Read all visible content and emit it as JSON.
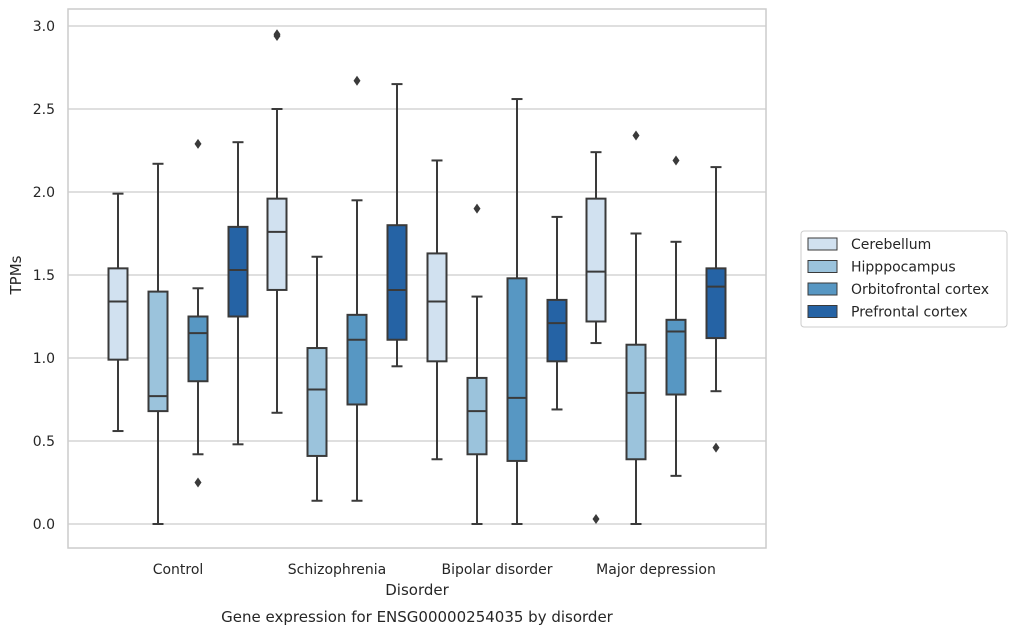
{
  "chart_data": {
    "type": "box",
    "title": "",
    "caption": "Gene expression for ENSG00000254035 by disorder",
    "xlabel": "Disorder",
    "ylabel": "TPMs",
    "ylim": [
      -0.15,
      3.1
    ],
    "yticks": [
      "0.0",
      "0.5",
      "1.0",
      "1.5",
      "2.0",
      "2.5",
      "3.0"
    ],
    "grid": "horizontal",
    "legend_position": "right",
    "categories": [
      "Control",
      "Schizophrenia",
      "Bipolar disorder",
      "Major depression"
    ],
    "series": [
      {
        "name": "Cerebellum",
        "color": "#d1e1f0",
        "boxes": [
          {
            "whisker_low": 0.56,
            "q1": 0.99,
            "median": 1.34,
            "q3": 1.54,
            "whisker_high": 1.99,
            "outliers": []
          },
          {
            "whisker_low": 0.67,
            "q1": 1.41,
            "median": 1.76,
            "q3": 1.96,
            "whisker_high": 2.5,
            "outliers": [
              2.94,
              2.95
            ]
          },
          {
            "whisker_low": 0.39,
            "q1": 0.98,
            "median": 1.34,
            "q3": 1.63,
            "whisker_high": 2.19,
            "outliers": []
          },
          {
            "whisker_low": 1.09,
            "q1": 1.22,
            "median": 1.52,
            "q3": 1.96,
            "whisker_high": 2.24,
            "outliers": [
              0.03
            ]
          }
        ]
      },
      {
        "name": "Hipppocampus",
        "color": "#9bc3dc",
        "boxes": [
          {
            "whisker_low": 0.0,
            "q1": 0.68,
            "median": 0.77,
            "q3": 1.4,
            "whisker_high": 2.17,
            "outliers": []
          },
          {
            "whisker_low": 0.14,
            "q1": 0.41,
            "median": 0.81,
            "q3": 1.06,
            "whisker_high": 1.61,
            "outliers": []
          },
          {
            "whisker_low": 0.0,
            "q1": 0.42,
            "median": 0.68,
            "q3": 0.88,
            "whisker_high": 1.37,
            "outliers": [
              1.9
            ]
          },
          {
            "whisker_low": 0.0,
            "q1": 0.39,
            "median": 0.79,
            "q3": 1.08,
            "whisker_high": 1.75,
            "outliers": [
              2.34
            ]
          }
        ]
      },
      {
        "name": "Orbitofrontal cortex",
        "color": "#5797c3",
        "boxes": [
          {
            "whisker_low": 0.42,
            "q1": 0.86,
            "median": 1.15,
            "q3": 1.25,
            "whisker_high": 1.42,
            "outliers": [
              0.25,
              2.29
            ]
          },
          {
            "whisker_low": 0.14,
            "q1": 0.72,
            "median": 1.11,
            "q3": 1.26,
            "whisker_high": 1.95,
            "outliers": [
              2.67
            ]
          },
          {
            "whisker_low": 0.0,
            "q1": 0.38,
            "median": 0.76,
            "q3": 1.48,
            "whisker_high": 2.56,
            "outliers": []
          },
          {
            "whisker_low": 0.29,
            "q1": 0.78,
            "median": 1.16,
            "q3": 1.23,
            "whisker_high": 1.7,
            "outliers": [
              2.19
            ]
          }
        ]
      },
      {
        "name": "Prefrontal cortex",
        "color": "#2563a5",
        "boxes": [
          {
            "whisker_low": 0.48,
            "q1": 1.25,
            "median": 1.53,
            "q3": 1.79,
            "whisker_high": 2.3,
            "outliers": []
          },
          {
            "whisker_low": 0.95,
            "q1": 1.11,
            "median": 1.41,
            "q3": 1.8,
            "whisker_high": 2.65,
            "outliers": []
          },
          {
            "whisker_low": 0.69,
            "q1": 0.98,
            "median": 1.21,
            "q3": 1.35,
            "whisker_high": 1.85,
            "outliers": []
          },
          {
            "whisker_low": 0.8,
            "q1": 1.12,
            "median": 1.43,
            "q3": 1.54,
            "whisker_high": 2.15,
            "outliers": [
              0.46
            ]
          }
        ]
      }
    ]
  },
  "colors": {
    "grid": "#cccccc",
    "frame": "#cccccc",
    "box_edge": "#3a3a3a",
    "legend_border": "#cccccc"
  }
}
